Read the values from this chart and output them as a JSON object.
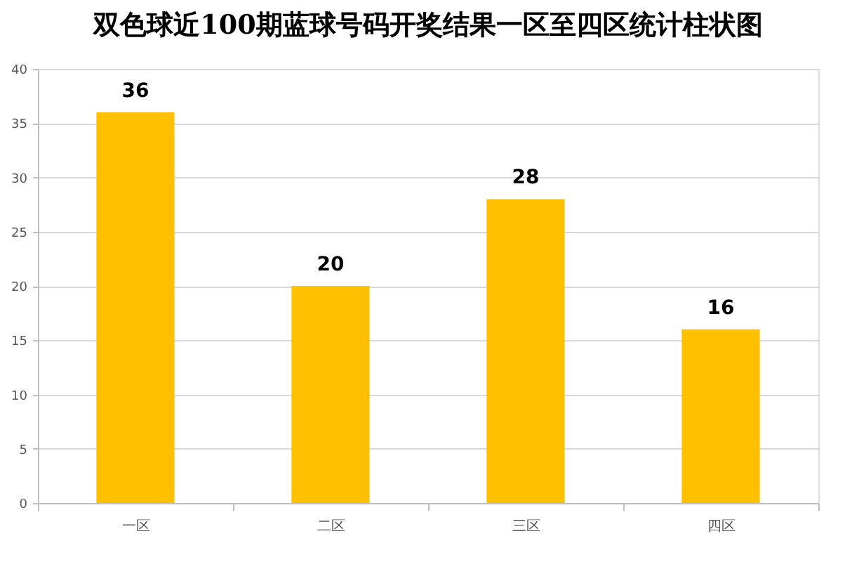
{
  "chart_data": {
    "type": "bar",
    "title": "双色球近100期蓝球号码开奖结果一区至四区统计柱状图",
    "categories": [
      "一区",
      "二区",
      "三区",
      "四区"
    ],
    "values": [
      36,
      20,
      28,
      16
    ],
    "color": "#ffc000",
    "ylim": [
      0,
      40
    ],
    "yticks": [
      0,
      5,
      10,
      15,
      20,
      25,
      30,
      35,
      40
    ],
    "grid": "y",
    "data_labels": true
  }
}
